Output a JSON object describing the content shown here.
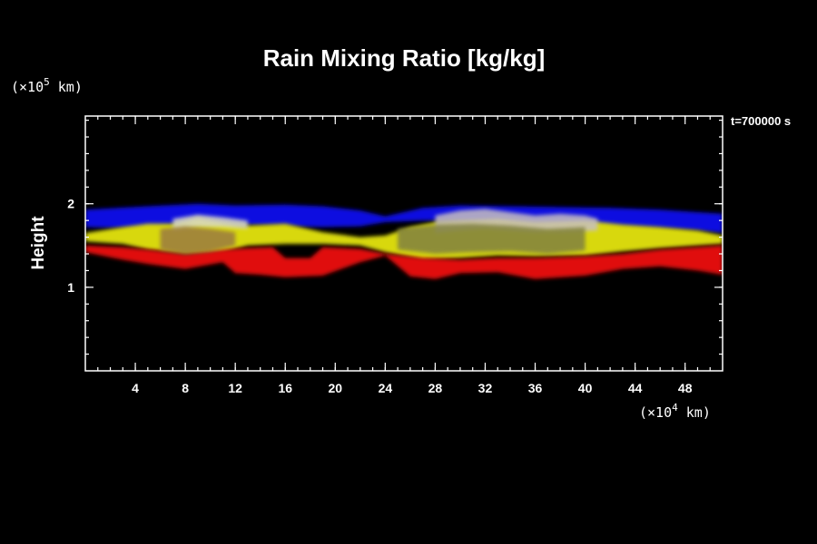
{
  "chart_data": {
    "type": "heatmap",
    "title": "Rain Mixing Ratio [kg/kg]",
    "xlabel": "",
    "ylabel": "Height",
    "x_unit": {
      "prefix": "(×10",
      "exp": "4",
      "suffix": " km)"
    },
    "y_unit": {
      "prefix": "(×10",
      "exp": "5",
      "suffix": " km)"
    },
    "time_label": "t=700000 s",
    "xlim": [
      0,
      51
    ],
    "ylim": [
      0,
      3.05
    ],
    "x_ticks": [
      4,
      8,
      12,
      16,
      20,
      24,
      28,
      32,
      36,
      40,
      44,
      48
    ],
    "y_ticks": [
      1,
      2
    ],
    "x_minor_step": 1,
    "y_minor_step": 0.2,
    "layers": [
      {
        "color": "#1010e0",
        "top": [
          [
            0,
            1.93
          ],
          [
            5,
            1.97
          ],
          [
            9,
            2.0
          ],
          [
            12,
            1.98
          ],
          [
            16,
            1.99
          ],
          [
            19,
            1.97
          ],
          [
            22,
            1.92
          ],
          [
            24,
            1.85
          ],
          [
            27,
            1.95
          ],
          [
            30,
            1.98
          ],
          [
            34,
            1.97
          ],
          [
            38,
            1.96
          ],
          [
            42,
            1.95
          ],
          [
            46,
            1.93
          ],
          [
            49,
            1.9
          ],
          [
            51,
            1.88
          ]
        ],
        "bottom": [
          [
            0,
            1.72
          ],
          [
            5,
            1.7
          ],
          [
            9,
            1.78
          ],
          [
            12,
            1.75
          ],
          [
            16,
            1.73
          ],
          [
            19,
            1.72
          ],
          [
            22,
            1.73
          ],
          [
            24,
            1.78
          ],
          [
            27,
            1.8
          ],
          [
            30,
            1.8
          ],
          [
            34,
            1.77
          ],
          [
            38,
            1.75
          ],
          [
            42,
            1.73
          ],
          [
            46,
            1.7
          ],
          [
            49,
            1.68
          ],
          [
            51,
            1.65
          ]
        ]
      },
      {
        "color": "#d8d810",
        "top": [
          [
            0,
            1.65
          ],
          [
            3,
            1.72
          ],
          [
            5,
            1.76
          ],
          [
            7,
            1.76
          ],
          [
            9,
            1.83
          ],
          [
            11,
            1.78
          ],
          [
            13,
            1.74
          ],
          [
            16,
            1.76
          ],
          [
            19,
            1.66
          ],
          [
            22,
            1.6
          ],
          [
            24,
            1.62
          ],
          [
            26,
            1.72
          ],
          [
            28,
            1.78
          ],
          [
            30,
            1.8
          ],
          [
            33,
            1.82
          ],
          [
            36,
            1.78
          ],
          [
            40,
            1.8
          ],
          [
            43,
            1.75
          ],
          [
            46,
            1.72
          ],
          [
            49,
            1.68
          ],
          [
            51,
            1.62
          ]
        ],
        "bottom": [
          [
            0,
            1.55
          ],
          [
            3,
            1.52
          ],
          [
            5,
            1.45
          ],
          [
            8,
            1.4
          ],
          [
            11,
            1.42
          ],
          [
            13,
            1.5
          ],
          [
            16,
            1.52
          ],
          [
            19,
            1.52
          ],
          [
            22,
            1.5
          ],
          [
            24,
            1.42
          ],
          [
            27,
            1.33
          ],
          [
            30,
            1.35
          ],
          [
            33,
            1.38
          ],
          [
            36,
            1.37
          ],
          [
            40,
            1.38
          ],
          [
            43,
            1.43
          ],
          [
            46,
            1.47
          ],
          [
            49,
            1.5
          ],
          [
            51,
            1.52
          ]
        ]
      },
      {
        "color": "#e01010",
        "top": [
          [
            0,
            1.5
          ],
          [
            3,
            1.48
          ],
          [
            5,
            1.45
          ],
          [
            8,
            1.4
          ],
          [
            11,
            1.45
          ],
          [
            13,
            1.47
          ],
          [
            15,
            1.48
          ],
          [
            16,
            1.35
          ],
          [
            18,
            1.35
          ],
          [
            19,
            1.48
          ],
          [
            22,
            1.46
          ],
          [
            24,
            1.4
          ],
          [
            27,
            1.35
          ],
          [
            30,
            1.33
          ],
          [
            33,
            1.35
          ],
          [
            36,
            1.35
          ],
          [
            40,
            1.37
          ],
          [
            43,
            1.4
          ],
          [
            46,
            1.45
          ],
          [
            49,
            1.48
          ],
          [
            51,
            1.5
          ]
        ],
        "bottom": [
          [
            0,
            1.42
          ],
          [
            3,
            1.33
          ],
          [
            5,
            1.28
          ],
          [
            8,
            1.22
          ],
          [
            11,
            1.3
          ],
          [
            12,
            1.17
          ],
          [
            14,
            1.15
          ],
          [
            16,
            1.12
          ],
          [
            19,
            1.14
          ],
          [
            22,
            1.3
          ],
          [
            24,
            1.38
          ],
          [
            26,
            1.13
          ],
          [
            28,
            1.1
          ],
          [
            30,
            1.17
          ],
          [
            33,
            1.18
          ],
          [
            36,
            1.1
          ],
          [
            40,
            1.14
          ],
          [
            43,
            1.22
          ],
          [
            46,
            1.25
          ],
          [
            49,
            1.2
          ],
          [
            51,
            1.15
          ]
        ]
      },
      {
        "color": "#d8d8c8",
        "top": [
          [
            7,
            1.82
          ],
          [
            9,
            1.87
          ],
          [
            11,
            1.84
          ],
          [
            13,
            1.8
          ]
        ],
        "bottom": [
          [
            7,
            1.68
          ],
          [
            9,
            1.72
          ],
          [
            11,
            1.72
          ],
          [
            13,
            1.7
          ]
        ]
      },
      {
        "color": "#c8c0c0",
        "top": [
          [
            28,
            1.86
          ],
          [
            30,
            1.92
          ],
          [
            32,
            1.94
          ],
          [
            34,
            1.9
          ],
          [
            36,
            1.86
          ],
          [
            38,
            1.88
          ],
          [
            40,
            1.86
          ],
          [
            41,
            1.82
          ]
        ],
        "bottom": [
          [
            28,
            1.65
          ],
          [
            30,
            1.68
          ],
          [
            32,
            1.7
          ],
          [
            34,
            1.68
          ],
          [
            36,
            1.66
          ],
          [
            38,
            1.66
          ],
          [
            40,
            1.67
          ],
          [
            41,
            1.68
          ]
        ]
      },
      {
        "color": "#808040",
        "top": [
          [
            25,
            1.7
          ],
          [
            28,
            1.75
          ],
          [
            31,
            1.76
          ],
          [
            34,
            1.74
          ],
          [
            37,
            1.7
          ],
          [
            40,
            1.72
          ]
        ],
        "bottom": [
          [
            25,
            1.45
          ],
          [
            28,
            1.4
          ],
          [
            31,
            1.42
          ],
          [
            34,
            1.43
          ],
          [
            37,
            1.4
          ],
          [
            40,
            1.44
          ]
        ]
      },
      {
        "color": "#9a7a40",
        "top": [
          [
            6,
            1.7
          ],
          [
            8,
            1.73
          ],
          [
            10,
            1.7
          ],
          [
            12,
            1.66
          ]
        ],
        "bottom": [
          [
            6,
            1.45
          ],
          [
            8,
            1.4
          ],
          [
            10,
            1.43
          ],
          [
            12,
            1.5
          ]
        ]
      }
    ]
  }
}
